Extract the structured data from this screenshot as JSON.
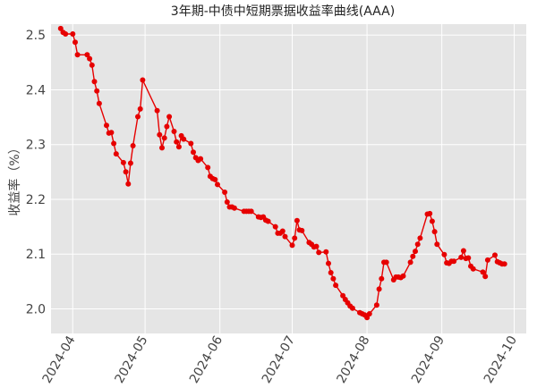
{
  "chart_data": {
    "type": "line",
    "title": "3年期-中债中短期票据收益率曲线(AAA)",
    "xlabel": "",
    "ylabel": "收益率（%）",
    "x_ticks": [
      "2024-04",
      "2024-05",
      "2024-06",
      "2024-07",
      "2024-08",
      "2024-09",
      "2024-10"
    ],
    "y_ticks": [
      "2.0",
      "2.1",
      "2.2",
      "2.3",
      "2.4",
      "2.5"
    ],
    "xlim": [
      "2024-03-23",
      "2024-10-06"
    ],
    "ylim": [
      1.955,
      2.52
    ],
    "grid": true,
    "legend": "none",
    "colors": {
      "series": "#e60000",
      "panel": "#e5e5e5",
      "grid": "#ffffff"
    },
    "series": [
      {
        "x": [
          "2024-03-27",
          "2024-03-28",
          "2024-03-29",
          "2024-04-01",
          "2024-04-02",
          "2024-04-03",
          "2024-04-07",
          "2024-04-08",
          "2024-04-09",
          "2024-04-10",
          "2024-04-11",
          "2024-04-12",
          "2024-04-15",
          "2024-04-16",
          "2024-04-17",
          "2024-04-18",
          "2024-04-19",
          "2024-04-22",
          "2024-04-23",
          "2024-04-24",
          "2024-04-25",
          "2024-04-26",
          "2024-04-28",
          "2024-04-29",
          "2024-04-30",
          "2024-05-06",
          "2024-05-07",
          "2024-05-08",
          "2024-05-09",
          "2024-05-10",
          "2024-05-11",
          "2024-05-13",
          "2024-05-14",
          "2024-05-15",
          "2024-05-16",
          "2024-05-17",
          "2024-05-20",
          "2024-05-21",
          "2024-05-22",
          "2024-05-23",
          "2024-05-24",
          "2024-05-27",
          "2024-05-28",
          "2024-05-29",
          "2024-05-30",
          "2024-05-31",
          "2024-06-03",
          "2024-06-04",
          "2024-06-05",
          "2024-06-06",
          "2024-06-07",
          "2024-06-11",
          "2024-06-12",
          "2024-06-13",
          "2024-06-14",
          "2024-06-17",
          "2024-06-18",
          "2024-06-19",
          "2024-06-20",
          "2024-06-21",
          "2024-06-24",
          "2024-06-25",
          "2024-06-26",
          "2024-06-27",
          "2024-06-28",
          "2024-07-01",
          "2024-07-02",
          "2024-07-03",
          "2024-07-04",
          "2024-07-05",
          "2024-07-08",
          "2024-07-09",
          "2024-07-10",
          "2024-07-11",
          "2024-07-12",
          "2024-07-15",
          "2024-07-16",
          "2024-07-17",
          "2024-07-18",
          "2024-07-19",
          "2024-07-22",
          "2024-07-23",
          "2024-07-24",
          "2024-07-25",
          "2024-07-26",
          "2024-07-29",
          "2024-07-30",
          "2024-07-31",
          "2024-08-01",
          "2024-08-02",
          "2024-08-05",
          "2024-08-06",
          "2024-08-07",
          "2024-08-08",
          "2024-08-09",
          "2024-08-12",
          "2024-08-13",
          "2024-08-14",
          "2024-08-15",
          "2024-08-16",
          "2024-08-19",
          "2024-08-20",
          "2024-08-21",
          "2024-08-22",
          "2024-08-23",
          "2024-08-26",
          "2024-08-27",
          "2024-08-28",
          "2024-08-29",
          "2024-08-30",
          "2024-09-02",
          "2024-09-03",
          "2024-09-04",
          "2024-09-05",
          "2024-09-06",
          "2024-09-09",
          "2024-09-10",
          "2024-09-11",
          "2024-09-12",
          "2024-09-13",
          "2024-09-14",
          "2024-09-18",
          "2024-09-19",
          "2024-09-20",
          "2024-09-23",
          "2024-09-24",
          "2024-09-25",
          "2024-09-26",
          "2024-09-27"
        ],
        "y": [
          2.512,
          2.505,
          2.502,
          2.502,
          2.487,
          2.464,
          2.464,
          2.457,
          2.445,
          2.415,
          2.398,
          2.375,
          2.335,
          2.321,
          2.322,
          2.302,
          2.283,
          2.267,
          2.25,
          2.228,
          2.266,
          2.298,
          2.351,
          2.365,
          2.418,
          2.362,
          2.318,
          2.294,
          2.312,
          2.333,
          2.351,
          2.324,
          2.305,
          2.296,
          2.316,
          2.31,
          2.302,
          2.286,
          2.276,
          2.271,
          2.274,
          2.258,
          2.242,
          2.238,
          2.236,
          2.227,
          2.213,
          2.195,
          2.186,
          2.186,
          2.184,
          2.178,
          2.178,
          2.178,
          2.178,
          2.168,
          2.167,
          2.168,
          2.162,
          2.16,
          2.15,
          2.138,
          2.138,
          2.142,
          2.132,
          2.116,
          2.129,
          2.161,
          2.144,
          2.143,
          2.121,
          2.118,
          2.113,
          2.114,
          2.103,
          2.104,
          2.083,
          2.066,
          2.055,
          2.043,
          2.024,
          2.017,
          2.011,
          2.005,
          2.001,
          1.993,
          1.991,
          1.989,
          1.984,
          1.991,
          2.007,
          2.036,
          2.055,
          2.085,
          2.085,
          2.053,
          2.058,
          2.058,
          2.057,
          2.06,
          2.085,
          2.096,
          2.105,
          2.118,
          2.129,
          2.173,
          2.174,
          2.16,
          2.141,
          2.118,
          2.099,
          2.084,
          2.083,
          2.087,
          2.087,
          2.094,
          2.106,
          2.092,
          2.093,
          2.078,
          2.073,
          2.067,
          2.059,
          2.089,
          2.098,
          2.086,
          2.084,
          2.082,
          2.082
        ]
      }
    ]
  }
}
